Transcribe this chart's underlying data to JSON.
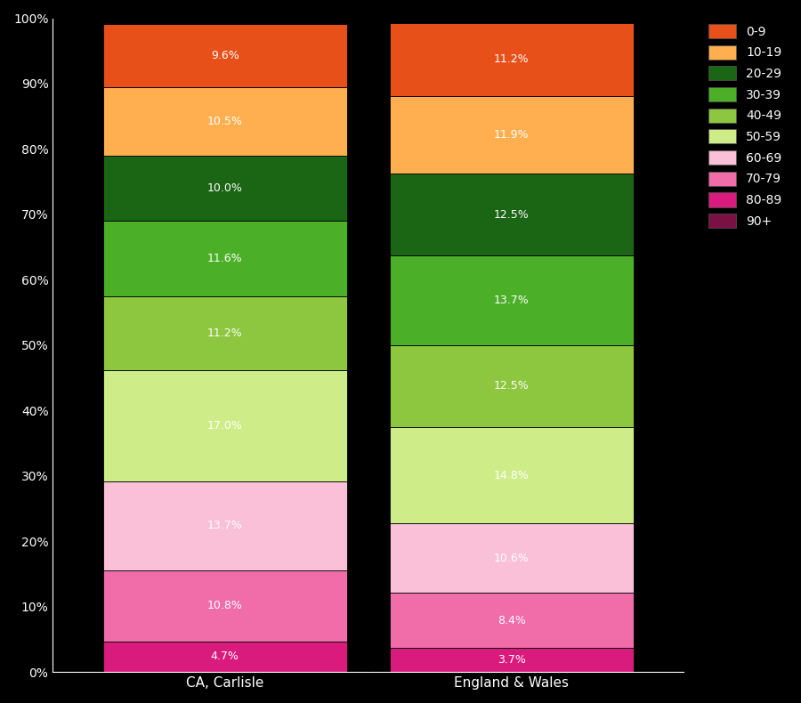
{
  "categories": [
    "CA, Carlisle",
    "England & Wales"
  ],
  "bar_data": {
    "CA, Carlisle": [
      4.7,
      10.8,
      13.7,
      17.0,
      11.2,
      11.6,
      10.0,
      10.5,
      9.6
    ],
    "England & Wales": [
      3.7,
      8.4,
      10.6,
      14.8,
      12.5,
      13.7,
      12.5,
      11.9,
      11.2
    ]
  },
  "segment_labels": [
    "80-89",
    "70-79",
    "60-69",
    "50-59",
    "40-49",
    "30-39",
    "20-29",
    "10-19",
    "0-9"
  ],
  "segment_colors": [
    "#D81B7D",
    "#F06DAA",
    "#F9C0D8",
    "#CEED88",
    "#8DC63F",
    "#4CAF28",
    "#1B6614",
    "#FFAF50",
    "#E8501A"
  ],
  "legend_labels": [
    "0-9",
    "10-19",
    "20-29",
    "30-39",
    "40-49",
    "50-59",
    "60-69",
    "70-79",
    "80-89",
    "90+"
  ],
  "legend_colors": [
    "#E8501A",
    "#FFAF50",
    "#1B6614",
    "#4CAF28",
    "#8DC63F",
    "#CEED88",
    "#F9C0D8",
    "#F06DAA",
    "#D81B7D",
    "#7B1045"
  ],
  "yticks": [
    0,
    10,
    20,
    30,
    40,
    50,
    60,
    70,
    80,
    90,
    100
  ],
  "ytick_labels": [
    "0%",
    "10%",
    "20%",
    "30%",
    "40%",
    "50%",
    "60%",
    "70%",
    "80%",
    "90%",
    "100%"
  ],
  "background_color": "#000000",
  "text_color": "#ffffff",
  "label_fontsize": 9,
  "tick_fontsize": 10,
  "xticklabel_fontsize": 11,
  "legend_fontsize": 10,
  "figsize": [
    9.0,
    7.9
  ],
  "dpi": 100
}
